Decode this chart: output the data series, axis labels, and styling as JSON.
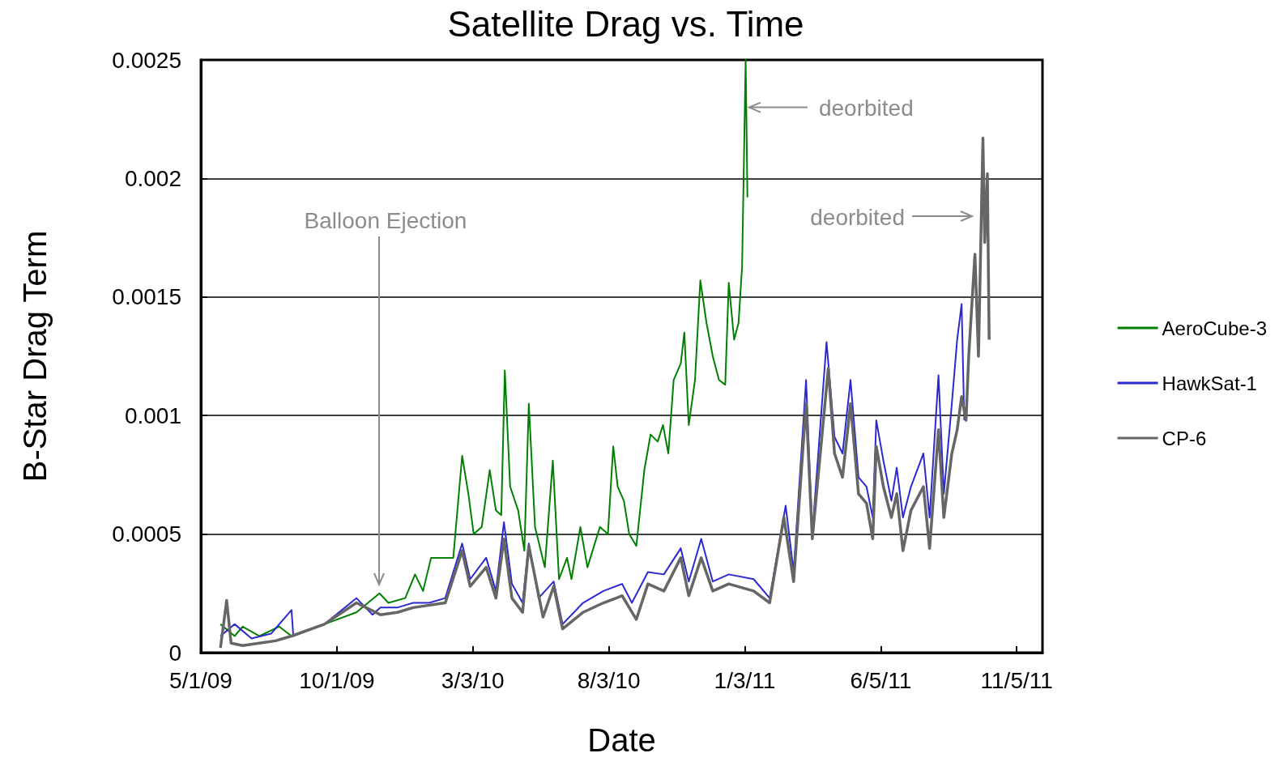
{
  "chart_data": {
    "type": "line",
    "title": "Satellite Drag vs. Time",
    "xlabel": "Date",
    "ylabel": "B-Star Drag Term",
    "xlim": [
      "2009-05-01",
      "2011-12-04"
    ],
    "xticks": [
      {
        "value": "2009-05-01",
        "label": "5/1/09"
      },
      {
        "value": "2009-10-01",
        "label": "10/1/09"
      },
      {
        "value": "2010-03-03",
        "label": "3/3/10"
      },
      {
        "value": "2010-08-03",
        "label": "8/3/10"
      },
      {
        "value": "2011-01-03",
        "label": "1/3/11"
      },
      {
        "value": "2011-06-05",
        "label": "6/5/11"
      },
      {
        "value": "2011-11-05",
        "label": "11/5/11"
      }
    ],
    "ylim": [
      0,
      0.0025
    ],
    "yticks": [
      0,
      0.0005,
      0.001,
      0.0015,
      0.002,
      0.0025
    ],
    "grid": "y",
    "legend": "right",
    "marker": "none",
    "line_style": "solid",
    "annotations": [
      "Balloon Ejection",
      {
        "text": "deorbited",
        "x": "2011-01-08",
        "y": 0.0023
      },
      "deorbited"
    ],
    "series": [
      {
        "name": "AeroCube-3",
        "color": "#008000",
        "x": [
          "2009-05-23",
          "2009-06-08",
          "2009-06-17",
          "2009-07-06",
          "2009-07-28",
          "2009-08-11",
          "2009-09-17",
          "2009-10-23",
          "2009-11-18",
          "2009-11-28",
          "2009-12-17",
          "2009-12-28",
          "2010-01-06",
          "2010-01-15",
          "2010-01-27",
          "2010-02-09",
          "2010-02-19",
          "2010-02-26",
          "2010-03-04",
          "2010-03-13",
          "2010-03-22",
          "2010-03-29",
          "2010-04-04",
          "2010-04-08",
          "2010-04-14",
          "2010-04-23",
          "2010-04-30",
          "2010-05-05",
          "2010-05-12",
          "2010-05-23",
          "2010-06-01",
          "2010-06-08",
          "2010-06-17",
          "2010-06-22",
          "2010-07-02",
          "2010-07-10",
          "2010-07-24",
          "2010-08-02",
          "2010-08-08",
          "2010-08-13",
          "2010-08-20",
          "2010-08-26",
          "2010-09-03",
          "2010-09-12",
          "2010-09-19",
          "2010-09-27",
          "2010-10-03",
          "2010-10-09",
          "2010-10-15",
          "2010-10-23",
          "2010-10-27",
          "2010-11-01",
          "2010-11-08",
          "2010-11-14",
          "2010-11-21",
          "2010-11-28",
          "2010-12-05",
          "2010-12-12",
          "2010-12-16",
          "2010-12-22",
          "2010-12-27",
          "2010-12-31",
          "2011-01-04",
          "2011-01-06"
        ],
        "values": [
          0.00012,
          7e-05,
          0.00011,
          7e-05,
          0.00011,
          7e-05,
          0.00012,
          0.00017,
          0.00025,
          0.00021,
          0.00023,
          0.00033,
          0.00026,
          0.0004,
          0.0004,
          0.0004,
          0.00083,
          0.00067,
          0.0005,
          0.00053,
          0.00077,
          0.0006,
          0.00058,
          0.00119,
          0.0007,
          0.0006,
          0.00043,
          0.00105,
          0.00053,
          0.00036,
          0.00081,
          0.00031,
          0.0004,
          0.00031,
          0.00053,
          0.00036,
          0.00053,
          0.0005,
          0.00087,
          0.0007,
          0.00064,
          0.0005,
          0.00045,
          0.00077,
          0.00092,
          0.00089,
          0.00096,
          0.00084,
          0.00115,
          0.00122,
          0.00135,
          0.00096,
          0.00115,
          0.00157,
          0.00139,
          0.00125,
          0.00115,
          0.00113,
          0.00156,
          0.00132,
          0.00139,
          0.00163,
          0.0025,
          0.00192
        ]
      },
      {
        "name": "HawkSat-1",
        "color": "#2a2ad0",
        "x": [
          "2009-05-23",
          "2009-06-08",
          "2009-06-27",
          "2009-07-19",
          "2009-08-11",
          "2009-08-13",
          "2009-09-17",
          "2009-10-23",
          "2009-11-10",
          "2009-11-19",
          "2009-12-08",
          "2009-12-26",
          "2010-01-13",
          "2010-01-31",
          "2010-02-19",
          "2010-02-28",
          "2010-03-18",
          "2010-03-29",
          "2010-04-07",
          "2010-04-16",
          "2010-04-28",
          "2010-05-05",
          "2010-05-16",
          "2010-06-02",
          "2010-06-12",
          "2010-07-05",
          "2010-07-28",
          "2010-08-18",
          "2010-08-29",
          "2010-09-16",
          "2010-10-04",
          "2010-10-23",
          "2010-11-01",
          "2010-11-15",
          "2010-11-28",
          "2010-12-16",
          "2011-01-13",
          "2011-01-31",
          "2011-02-18",
          "2011-02-27",
          "2011-03-13",
          "2011-03-20",
          "2011-04-05",
          "2011-04-14",
          "2011-04-23",
          "2011-05-02",
          "2011-05-11",
          "2011-05-20",
          "2011-05-27",
          "2011-05-31",
          "2011-06-08",
          "2011-06-17",
          "2011-06-23",
          "2011-06-30",
          "2011-07-09",
          "2011-07-23",
          "2011-07-30",
          "2011-08-09",
          "2011-08-15",
          "2011-08-24",
          "2011-08-30",
          "2011-09-04",
          "2011-09-07"
        ],
        "values": [
          7e-05,
          0.00012,
          6e-05,
          8e-05,
          0.00018,
          7e-05,
          0.00012,
          0.00023,
          0.00016,
          0.00019,
          0.00019,
          0.00021,
          0.00021,
          0.00023,
          0.00046,
          0.00031,
          0.0004,
          0.00026,
          0.00055,
          0.00029,
          0.00021,
          0.00046,
          0.00023,
          0.0003,
          0.00012,
          0.00021,
          0.00026,
          0.00029,
          0.00021,
          0.00034,
          0.00033,
          0.00044,
          0.0003,
          0.00048,
          0.0003,
          0.00033,
          0.00031,
          0.00023,
          0.00062,
          0.00034,
          0.00115,
          0.0005,
          0.00131,
          0.00091,
          0.00084,
          0.00115,
          0.00074,
          0.0007,
          0.00057,
          0.00098,
          0.00081,
          0.00064,
          0.00078,
          0.00057,
          0.0007,
          0.00084,
          0.00057,
          0.00117,
          0.00067,
          0.00105,
          0.00132,
          0.00147,
          0.00098
        ]
      },
      {
        "name": "CP-6",
        "color": "#666666",
        "x": [
          "2009-05-23",
          "2009-05-30",
          "2009-06-04",
          "2009-06-17",
          "2009-07-06",
          "2009-07-24",
          "2009-08-11",
          "2009-09-17",
          "2009-10-23",
          "2009-11-19",
          "2009-12-08",
          "2009-12-26",
          "2010-01-31",
          "2010-02-19",
          "2010-02-28",
          "2010-03-18",
          "2010-03-29",
          "2010-04-07",
          "2010-04-16",
          "2010-04-28",
          "2010-05-05",
          "2010-05-21",
          "2010-06-02",
          "2010-06-12",
          "2010-07-05",
          "2010-07-28",
          "2010-08-18",
          "2010-09-03",
          "2010-09-16",
          "2010-10-04",
          "2010-10-23",
          "2010-11-01",
          "2010-11-15",
          "2010-11-28",
          "2010-12-16",
          "2011-01-13",
          "2011-01-31",
          "2011-02-16",
          "2011-02-27",
          "2011-03-13",
          "2011-03-20",
          "2011-04-07",
          "2011-04-14",
          "2011-04-23",
          "2011-05-02",
          "2011-05-11",
          "2011-05-20",
          "2011-05-27",
          "2011-05-31",
          "2011-06-08",
          "2011-06-17",
          "2011-06-23",
          "2011-06-30",
          "2011-07-09",
          "2011-07-23",
          "2011-07-30",
          "2011-08-09",
          "2011-08-15",
          "2011-08-24",
          "2011-08-30",
          "2011-09-04",
          "2011-09-09",
          "2011-09-12",
          "2011-09-19",
          "2011-09-23",
          "2011-09-28",
          "2011-09-30",
          "2011-10-03",
          "2011-10-05"
        ],
        "values": [
          2e-05,
          0.00022,
          4e-05,
          3e-05,
          4e-05,
          5e-05,
          7e-05,
          0.00012,
          0.00021,
          0.00016,
          0.00017,
          0.00019,
          0.00021,
          0.00043,
          0.00028,
          0.00036,
          0.00023,
          0.00048,
          0.00023,
          0.00017,
          0.00045,
          0.00015,
          0.00028,
          0.0001,
          0.00017,
          0.00021,
          0.00024,
          0.00014,
          0.00029,
          0.00026,
          0.0004,
          0.00024,
          0.0004,
          0.00026,
          0.00029,
          0.00026,
          0.00021,
          0.00057,
          0.0003,
          0.00105,
          0.00048,
          0.0012,
          0.00084,
          0.00074,
          0.00105,
          0.00067,
          0.00063,
          0.00048,
          0.00087,
          0.0007,
          0.00057,
          0.00067,
          0.00043,
          0.0006,
          0.0007,
          0.00044,
          0.00094,
          0.00057,
          0.00084,
          0.00094,
          0.00108,
          0.00098,
          0.00125,
          0.00168,
          0.00125,
          0.00217,
          0.00173,
          0.00202,
          0.00132
        ]
      }
    ]
  }
}
